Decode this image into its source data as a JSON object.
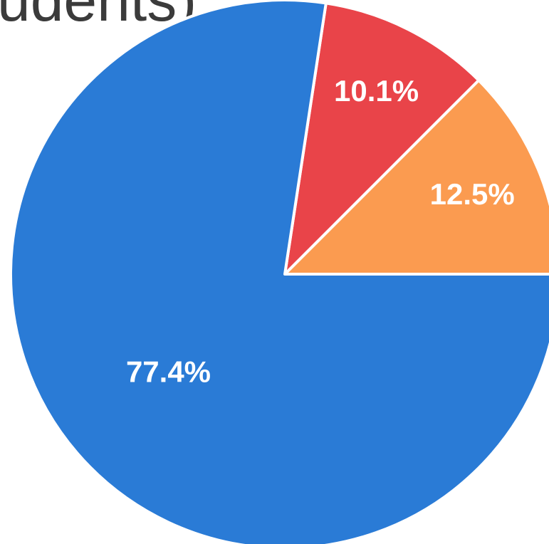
{
  "title_fragment": "udents)",
  "chart_data": {
    "type": "pie",
    "title": "udents)",
    "start_angle_deg": 0,
    "direction": "clockwise",
    "slices": [
      {
        "label": "12.5%",
        "value": 12.5,
        "color": "#fb9b50"
      },
      {
        "label": "10.1%",
        "value": 10.1,
        "color": "#e94449"
      },
      {
        "label": "77.4%",
        "value": 77.4,
        "color": "#2a7bd6"
      }
    ]
  }
}
